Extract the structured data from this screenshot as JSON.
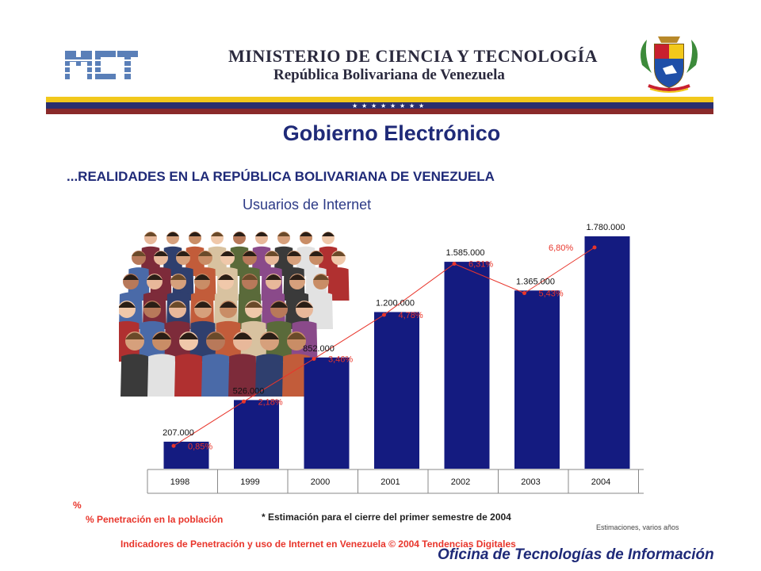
{
  "header": {
    "logo_text": "MCT",
    "ministry": "MINISTERIO DE CIENCIA Y TECNOLOGÍA",
    "republic": "República Bolivariana de Venezuela",
    "flag_colors": [
      "#f2c81b",
      "#1f2a78",
      "#c8202f"
    ]
  },
  "page": {
    "title": "Gobierno Electrónico",
    "subheading": "...REALIDADES EN LA REPÚBLICA BOLIVARIANA DE VENEZUELA"
  },
  "chart_data": {
    "type": "bar",
    "title": "Usuarios de Internet",
    "categories": [
      "1998",
      "1999",
      "2000",
      "2001",
      "2002",
      "2003",
      "2004"
    ],
    "series": [
      {
        "values": [
          207000,
          526000,
          852000,
          1200000,
          1585000,
          1365000,
          1780000
        ],
        "labels": [
          "207.000",
          "526.000",
          "852.000",
          "1.200.000",
          "1.585.000",
          "1.365.000",
          "1.780.000"
        ],
        "color": "#141b80"
      },
      {
        "name": "% Penetración en la población",
        "values": [
          0.85,
          2.18,
          3.46,
          4.78,
          6.31,
          5.43,
          6.8
        ],
        "labels": [
          "0,85%",
          "2,18%",
          "3,46%",
          "4,78%",
          "6,31%",
          "5,43%",
          "6,80%"
        ],
        "color": "#e8352b"
      }
    ],
    "ylim": [
      0,
      1780000
    ],
    "grid": false,
    "legend_symbol": "%",
    "legend_label": "% Penetración en la población"
  },
  "notes": {
    "footnote": "* Estimación para el cierre del primer semestre de 2004",
    "estimates": "Estimaciones, varios años",
    "source": "Indicadores de Penetración y uso de Internet en Venezuela  © 2004 Tendencias Digitales",
    "office": "Oficina de Tecnologías de Información"
  },
  "colors": {
    "navy": "#1f2a78",
    "bar": "#141b80",
    "red": "#e8352b",
    "gold": "#f2c81b"
  }
}
